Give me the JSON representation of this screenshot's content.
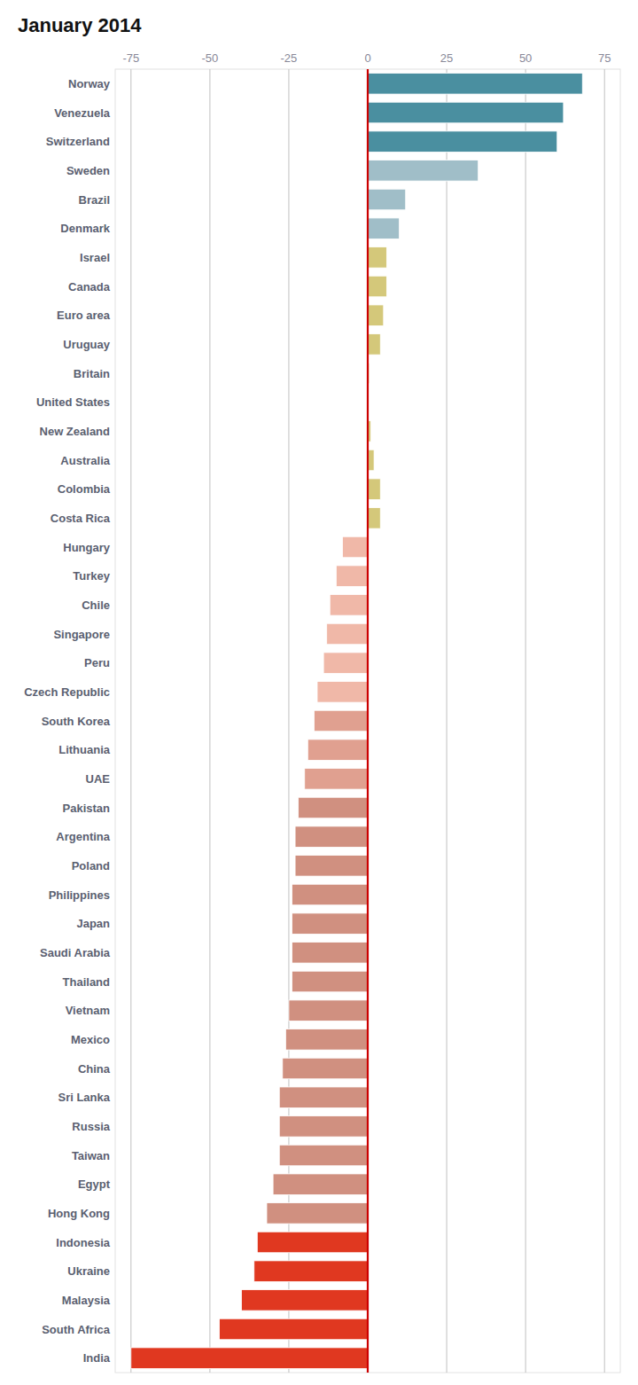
{
  "chart_data": {
    "type": "bar",
    "title": "January 2014",
    "orientation": "horizontal",
    "categories": [
      "Norway",
      "Venezuela",
      "Switzerland",
      "Sweden",
      "Brazil",
      "Denmark",
      "Israel",
      "Canada",
      "Euro area",
      "Uruguay",
      "Britain",
      "United States",
      "New Zealand",
      "Australia",
      "Colombia",
      "Costa Rica",
      "Hungary",
      "Turkey",
      "Chile",
      "Singapore",
      "Peru",
      "Czech Republic",
      "South Korea",
      "Lithuania",
      "UAE",
      "Pakistan",
      "Argentina",
      "Poland",
      "Philippines",
      "Japan",
      "Saudi Arabia",
      "Thailand",
      "Vietnam",
      "Mexico",
      "China",
      "Sri Lanka",
      "Russia",
      "Taiwan",
      "Egypt",
      "Hong Kong",
      "Indonesia",
      "Ukraine",
      "Malaysia",
      "South Africa",
      "India"
    ],
    "values": [
      68,
      62,
      60,
      35,
      12,
      10,
      6,
      6,
      5,
      4,
      0.5,
      0,
      1,
      2,
      4,
      4,
      -8,
      -10,
      -12,
      -13,
      -14,
      -16,
      -17,
      -19,
      -20,
      -22,
      -23,
      -23,
      -24,
      -24,
      -24,
      -24,
      -25,
      -26,
      -27,
      -28,
      -28,
      -28,
      -30,
      -32,
      -35,
      -36,
      -40,
      -47,
      -75
    ],
    "colors": [
      "#4a8fa0",
      "#4a8fa0",
      "#4a8fa0",
      "#a0bec8",
      "#a0bec8",
      "#a0bec8",
      "#d4c87a",
      "#d4c87a",
      "#d4c87a",
      "#d4c87a",
      "#d4c87a",
      "#d4c87a",
      "#d4c87a",
      "#d4c87a",
      "#d4c87a",
      "#d4c87a",
      "#f0b8a8",
      "#f0b8a8",
      "#f0b8a8",
      "#f0b8a8",
      "#f0b8a8",
      "#f0b8a8",
      "#e0a090",
      "#e0a090",
      "#e0a090",
      "#d09080",
      "#d09080",
      "#d09080",
      "#d09080",
      "#d09080",
      "#d09080",
      "#d09080",
      "#d09080",
      "#d09080",
      "#d09080",
      "#d09080",
      "#d09080",
      "#d09080",
      "#d09080",
      "#d09080",
      "#e03820",
      "#e03820",
      "#e03820",
      "#e03820",
      "#e03820"
    ],
    "xlim": [
      -80,
      80
    ],
    "xticks": [
      -75,
      -50,
      -25,
      0,
      25,
      50,
      75
    ],
    "grid": true
  }
}
